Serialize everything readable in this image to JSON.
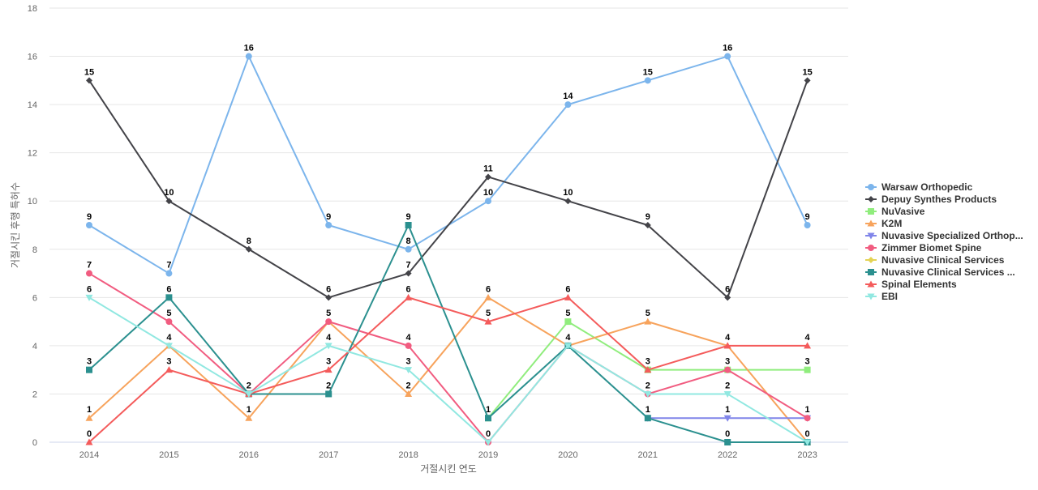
{
  "chart_data": {
    "type": "line",
    "title": "",
    "xlabel": "거절시킨 연도",
    "ylabel": "거절시킨 후행 특허수",
    "ylim": [
      0,
      18
    ],
    "yticks": [
      0,
      2,
      4,
      6,
      8,
      10,
      12,
      14,
      16,
      18
    ],
    "grid": true,
    "legend_position": "right",
    "x": [
      "2014",
      "2015",
      "2016",
      "2017",
      "2018",
      "2019",
      "2020",
      "2021",
      "2022",
      "2023"
    ],
    "series": [
      {
        "name": "Warsaw Orthopedic",
        "color": "#7cb5ec",
        "marker": "circle",
        "values": [
          9,
          7,
          16,
          9,
          8,
          10,
          14,
          15,
          16,
          9
        ]
      },
      {
        "name": "Depuy Synthes Products",
        "color": "#434348",
        "marker": "diamond",
        "values": [
          15,
          10,
          8,
          6,
          7,
          11,
          10,
          9,
          6,
          15
        ]
      },
      {
        "name": "NuVasive",
        "color": "#90ed7d",
        "marker": "square",
        "values": [
          null,
          null,
          null,
          null,
          null,
          1,
          5,
          3,
          3,
          3
        ]
      },
      {
        "name": "K2M",
        "color": "#f7a35c",
        "marker": "triangle",
        "values": [
          1,
          4,
          1,
          5,
          2,
          6,
          4,
          5,
          4,
          0
        ]
      },
      {
        "name": "Nuvasive Specialized Orthop...",
        "color": "#8085e9",
        "marker": "triangle-down",
        "values": [
          null,
          null,
          null,
          null,
          null,
          null,
          null,
          1,
          1,
          1
        ]
      },
      {
        "name": "Zimmer Biomet Spine",
        "color": "#f15c80",
        "marker": "circle",
        "values": [
          7,
          5,
          2,
          5,
          4,
          0,
          4,
          2,
          3,
          1
        ]
      },
      {
        "name": "Nuvasive Clinical Services",
        "color": "#e4d354",
        "marker": "diamond",
        "values": [
          null,
          null,
          null,
          null,
          null,
          null,
          null,
          null,
          null,
          null
        ]
      },
      {
        "name": "Nuvasive Clinical Services ...",
        "color": "#2b908f",
        "marker": "square",
        "values": [
          3,
          6,
          2,
          2,
          9,
          1,
          4,
          1,
          0,
          0
        ]
      },
      {
        "name": "Spinal Elements",
        "color": "#f45b5b",
        "marker": "triangle",
        "values": [
          0,
          3,
          2,
          3,
          6,
          5,
          6,
          3,
          4,
          4
        ]
      },
      {
        "name": "EBI",
        "color": "#91e8e1",
        "marker": "triangle-down",
        "values": [
          6,
          4,
          2,
          4,
          3,
          0,
          4,
          2,
          2,
          0
        ]
      }
    ],
    "data_labels": [
      {
        "x": "2014",
        "label_values": [
          15,
          9,
          7,
          6,
          3,
          1,
          0
        ]
      },
      {
        "x": "2015",
        "label_values": [
          10,
          7,
          6,
          5,
          4,
          3
        ]
      },
      {
        "x": "2016",
        "label_values": [
          16,
          8,
          2,
          1
        ]
      },
      {
        "x": "2017",
        "label_values": [
          9,
          6,
          5,
          4,
          3,
          2
        ]
      },
      {
        "x": "2018",
        "label_values": [
          9,
          8,
          7,
          6,
          4,
          3,
          2
        ]
      },
      {
        "x": "2019",
        "label_values": [
          11,
          10,
          6,
          5,
          1,
          0
        ]
      },
      {
        "x": "2020",
        "label_values": [
          14,
          10,
          6,
          5,
          4
        ]
      },
      {
        "x": "2021",
        "label_values": [
          15,
          9,
          5,
          3,
          2,
          1
        ]
      },
      {
        "x": "2022",
        "label_values": [
          16,
          6,
          4,
          3,
          2,
          1,
          0
        ]
      },
      {
        "x": "2023",
        "label_values": [
          15,
          9,
          4,
          3,
          1,
          0
        ]
      }
    ]
  }
}
